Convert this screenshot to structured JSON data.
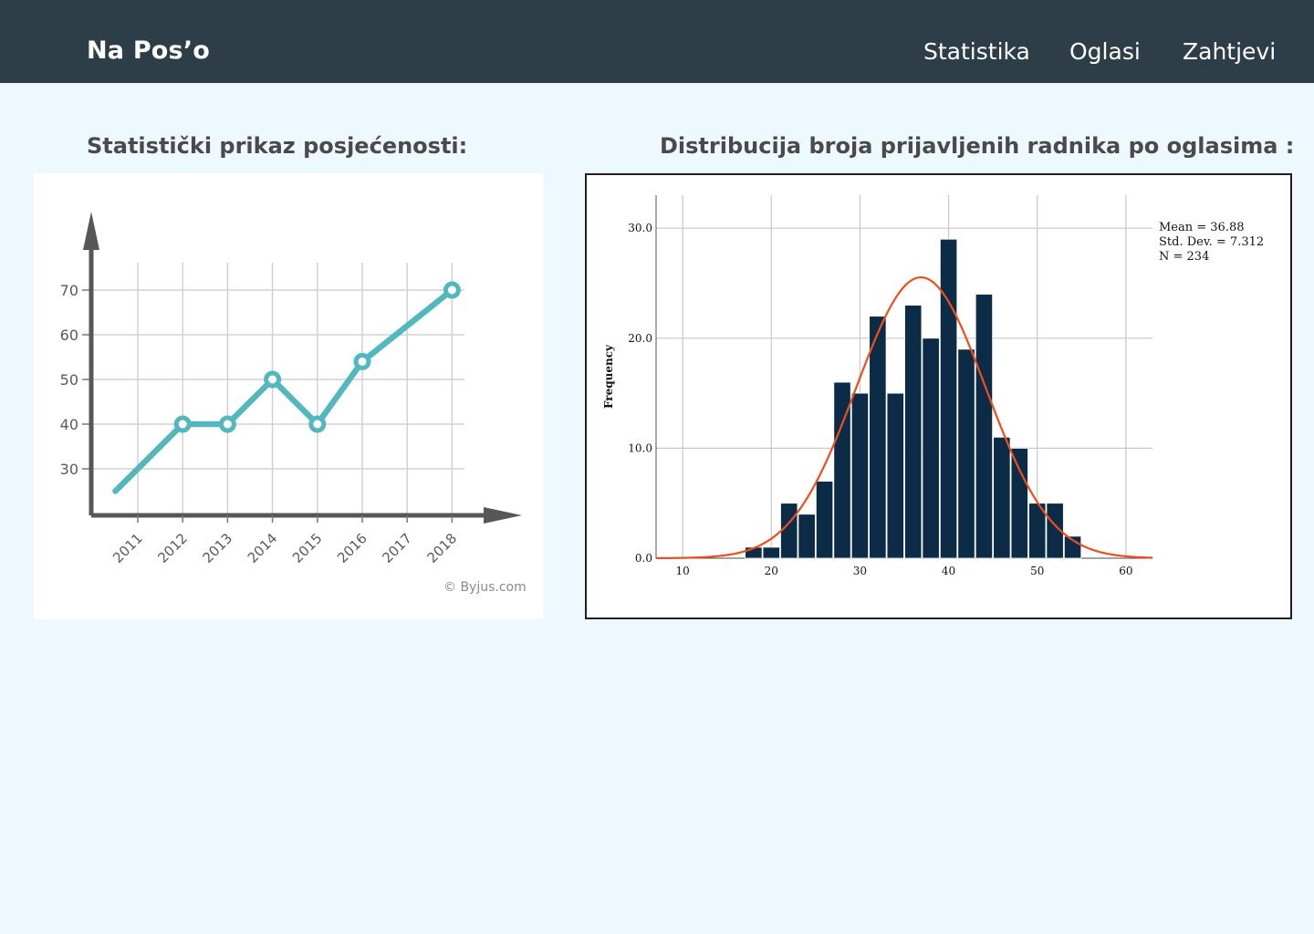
{
  "header": {
    "brand": "Na Pos’o",
    "nav": [
      {
        "label": "Statistika"
      },
      {
        "label": "Oglasi"
      },
      {
        "label": "Zahtjevi"
      }
    ]
  },
  "left": {
    "title": "Statistički prikaz posjećenosti:",
    "credit": "© Byjus.com"
  },
  "right": {
    "title": "Distribucija broja prijavljenih radnika po oglasima :"
  },
  "colors": {
    "header_bg": "#2d3e48",
    "page_bg": "#eef8ff",
    "line": "#53b8bd",
    "bars": "#0c2b47",
    "curve": "#ee4e1c"
  },
  "chart_data": [
    {
      "type": "line",
      "categories": [
        "2011",
        "2012",
        "2013",
        "2014",
        "2015",
        "2016",
        "2017",
        "2018"
      ],
      "y_ticks": [
        "30",
        "40",
        "50",
        "60",
        "70"
      ],
      "points": [
        {
          "x": "2010.5",
          "y": 25
        },
        {
          "x": "2012",
          "y": 40
        },
        {
          "x": "2013",
          "y": 40
        },
        {
          "x": "2014",
          "y": 50
        },
        {
          "x": "2015",
          "y": 40
        },
        {
          "x": "2016",
          "y": 54
        },
        {
          "x": "2018",
          "y": 70
        }
      ],
      "marked": [
        "2012",
        "2013",
        "2014",
        "2015",
        "2016",
        "2018"
      ],
      "ylim": [
        20,
        75
      ],
      "grid": true
    },
    {
      "type": "bar",
      "ylabel": "Frequency",
      "x_ticks": [
        "10",
        "20",
        "30",
        "40",
        "50",
        "60"
      ],
      "y_ticks": [
        "0.0",
        "10.0",
        "20.0",
        "30.0"
      ],
      "xlim": [
        7,
        63
      ],
      "ylim": [
        0,
        33
      ],
      "bin_width": 2,
      "bins": [
        {
          "x0": 17,
          "count": 1
        },
        {
          "x0": 19,
          "count": 1
        },
        {
          "x0": 21,
          "count": 5
        },
        {
          "x0": 23,
          "count": 4
        },
        {
          "x0": 25,
          "count": 7
        },
        {
          "x0": 27,
          "count": 16
        },
        {
          "x0": 29,
          "count": 15
        },
        {
          "x0": 31,
          "count": 22
        },
        {
          "x0": 33,
          "count": 15
        },
        {
          "x0": 35,
          "count": 23
        },
        {
          "x0": 37,
          "count": 20
        },
        {
          "x0": 39,
          "count": 29
        },
        {
          "x0": 41,
          "count": 19
        },
        {
          "x0": 43,
          "count": 24
        },
        {
          "x0": 45,
          "count": 11
        },
        {
          "x0": 47,
          "count": 10
        },
        {
          "x0": 49,
          "count": 5
        },
        {
          "x0": 51,
          "count": 5
        },
        {
          "x0": 53,
          "count": 2
        }
      ],
      "normal_curve": {
        "mean": 36.88,
        "sd": 7.312,
        "n": 234
      },
      "stats_text": [
        "Mean = 36.88",
        "Std. Dev. = 7.312",
        "N = 234"
      ],
      "grid": true
    }
  ]
}
